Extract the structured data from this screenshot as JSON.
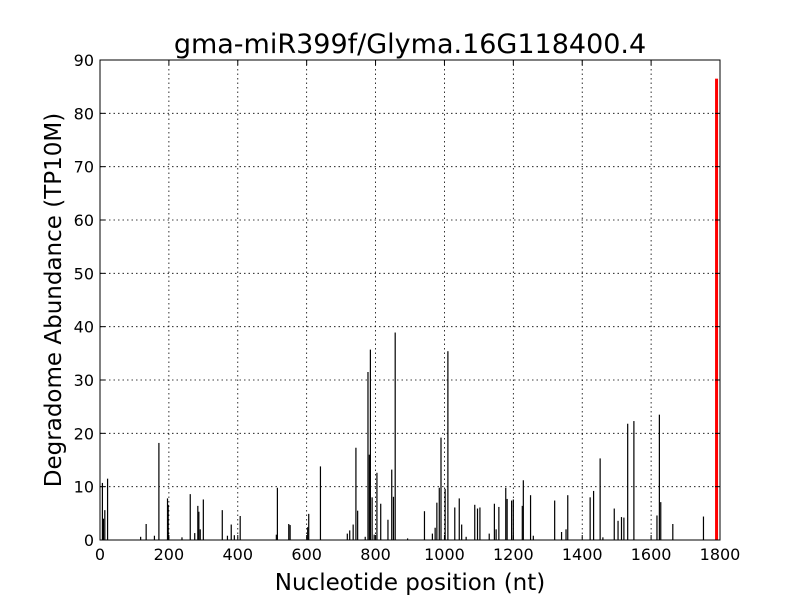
{
  "chart_data": {
    "type": "bar",
    "title": "gma-miR399f/Glyma.16G118400.4",
    "xlabel": "Nucleotide position (nt)",
    "ylabel": "Degradome Abundance (TP10M)",
    "xlim": [
      0,
      1800
    ],
    "ylim": [
      0,
      90
    ],
    "xticks": [
      0,
      200,
      400,
      600,
      800,
      1000,
      1200,
      1400,
      1600,
      1800
    ],
    "yticks": [
      0,
      10,
      20,
      30,
      40,
      50,
      60,
      70,
      80,
      90
    ],
    "grid": true,
    "bar_color": "#000000",
    "highlight_color": "#ff0000",
    "series": [
      {
        "values": [
          [
            7,
            10.7
          ],
          [
            10,
            4
          ],
          [
            14,
            5.6
          ],
          [
            22,
            11.5
          ],
          [
            118,
            0.6
          ],
          [
            134,
            3
          ],
          [
            158,
            0.8
          ],
          [
            171,
            18.2
          ],
          [
            196,
            7.8
          ],
          [
            198,
            6.6
          ],
          [
            238,
            0.5
          ],
          [
            262,
            8.6
          ],
          [
            275,
            1.3
          ],
          [
            284,
            6.4
          ],
          [
            287,
            5.3
          ],
          [
            291,
            2
          ],
          [
            300,
            7.6
          ],
          [
            355,
            5.6
          ],
          [
            370,
            0.8
          ],
          [
            381,
            2.9
          ],
          [
            390,
            0.9
          ],
          [
            407,
            4.5
          ],
          [
            512,
            1
          ],
          [
            515,
            9.8
          ],
          [
            548,
            3
          ],
          [
            552,
            2.8
          ],
          [
            603,
            2.4
          ],
          [
            606,
            4.9
          ],
          [
            640,
            13.8
          ],
          [
            718,
            1.2
          ],
          [
            725,
            1.8
          ],
          [
            735,
            2.9
          ],
          [
            743,
            17.3
          ],
          [
            748,
            5.5
          ],
          [
            770,
            0.6
          ],
          [
            778,
            31.5
          ],
          [
            782,
            16
          ],
          [
            785,
            35.7
          ],
          [
            790,
            8
          ],
          [
            796,
            1
          ],
          [
            804,
            12.6
          ],
          [
            815,
            6.8
          ],
          [
            836,
            3.8
          ],
          [
            847,
            13.2
          ],
          [
            852,
            8.1
          ],
          [
            857,
            38.9
          ],
          [
            893,
            0.3
          ],
          [
            942,
            5.4
          ],
          [
            965,
            1.2
          ],
          [
            973,
            2.3
          ],
          [
            978,
            7
          ],
          [
            985,
            9.8
          ],
          [
            990,
            19.2
          ],
          [
            1002,
            9.6
          ],
          [
            1010,
            35.4
          ],
          [
            1030,
            6.1
          ],
          [
            1043,
            7.8
          ],
          [
            1050,
            2.9
          ],
          [
            1063,
            0.6
          ],
          [
            1088,
            6.6
          ],
          [
            1096,
            5.9
          ],
          [
            1103,
            6.1
          ],
          [
            1130,
            1.2
          ],
          [
            1145,
            6.8
          ],
          [
            1150,
            2
          ],
          [
            1158,
            6.2
          ],
          [
            1178,
            9.8
          ],
          [
            1182,
            7.7
          ],
          [
            1195,
            7.4
          ],
          [
            1200,
            7.6
          ],
          [
            1226,
            6.4
          ],
          [
            1229,
            11.2
          ],
          [
            1250,
            8.4
          ],
          [
            1258,
            0.8
          ],
          [
            1320,
            7.4
          ],
          [
            1340,
            1.5
          ],
          [
            1353,
            2
          ],
          [
            1358,
            8.4
          ],
          [
            1423,
            8
          ],
          [
            1433,
            9.2
          ],
          [
            1452,
            15.3
          ],
          [
            1460,
            0.5
          ],
          [
            1493,
            5.9
          ],
          [
            1504,
            3.6
          ],
          [
            1514,
            4.3
          ],
          [
            1521,
            4.2
          ],
          [
            1532,
            21.8
          ],
          [
            1550,
            22.3
          ],
          [
            1617,
            4.6
          ],
          [
            1624,
            23.5
          ],
          [
            1628,
            7.1
          ],
          [
            1663,
            3
          ],
          [
            1752,
            4.4
          ]
        ]
      }
    ],
    "highlight": [
      1790,
      86.5
    ]
  }
}
